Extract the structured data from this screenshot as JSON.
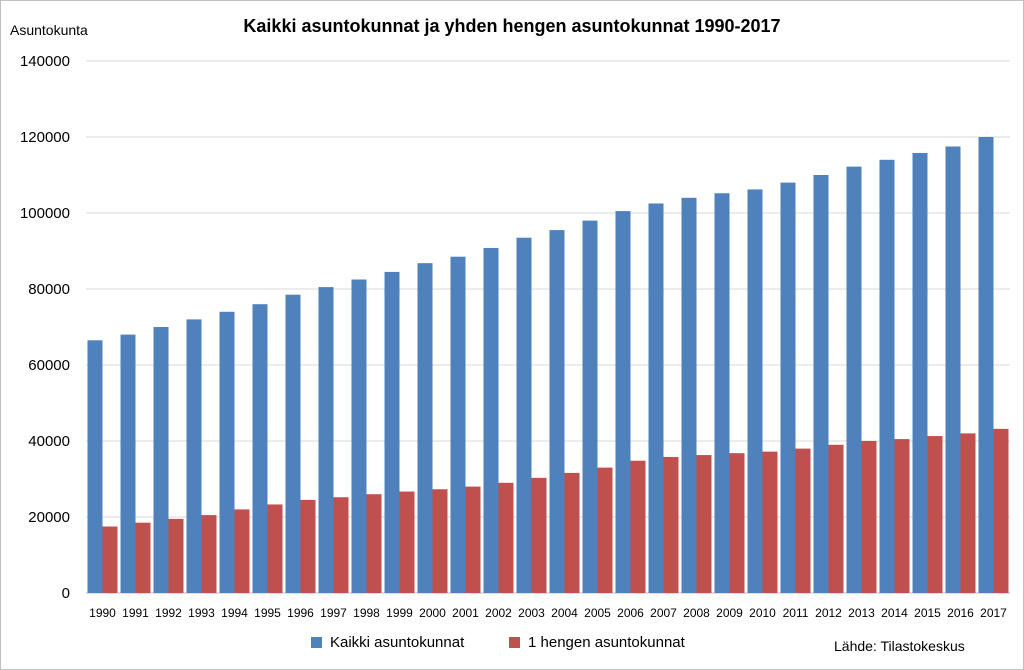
{
  "chart_data": {
    "type": "bar",
    "title": "Kaikki asuntokunnat ja yhden hengen asuntokunnat 1990-2017",
    "ylabel": "Asuntokunta",
    "xlabel": "",
    "source": "Lähde: Tilastokeskus",
    "ylim": [
      0,
      140000
    ],
    "yticks": [
      0,
      20000,
      40000,
      60000,
      80000,
      100000,
      120000,
      140000
    ],
    "grid": true,
    "legend_position": "bottom",
    "categories": [
      "1990",
      "1991",
      "1992",
      "1993",
      "1994",
      "1995",
      "1996",
      "1997",
      "1998",
      "1999",
      "2000",
      "2001",
      "2002",
      "2003",
      "2004",
      "2005",
      "2006",
      "2007",
      "2008",
      "2009",
      "2010",
      "2011",
      "2012",
      "2013",
      "2014",
      "2015",
      "2016",
      "2017"
    ],
    "series": [
      {
        "name": "Kaikki asuntokunnat",
        "color": "#4f81bd",
        "values": [
          66500,
          68000,
          70000,
          72000,
          74000,
          76000,
          78500,
          80500,
          82500,
          84500,
          86800,
          88500,
          90800,
          93500,
          95500,
          98000,
          100500,
          102500,
          104000,
          105200,
          106200,
          108000,
          110000,
          112200,
          114000,
          115800,
          117500,
          120000
        ]
      },
      {
        "name": "1 hengen asuntokunnat",
        "color": "#c0504d",
        "values": [
          17500,
          18500,
          19500,
          20500,
          22000,
          23300,
          24500,
          25200,
          26000,
          26700,
          27300,
          28000,
          29000,
          30300,
          31600,
          33000,
          34800,
          35800,
          36300,
          36800,
          37200,
          38000,
          39000,
          40000,
          40500,
          41300,
          42000,
          43200
        ]
      }
    ]
  }
}
